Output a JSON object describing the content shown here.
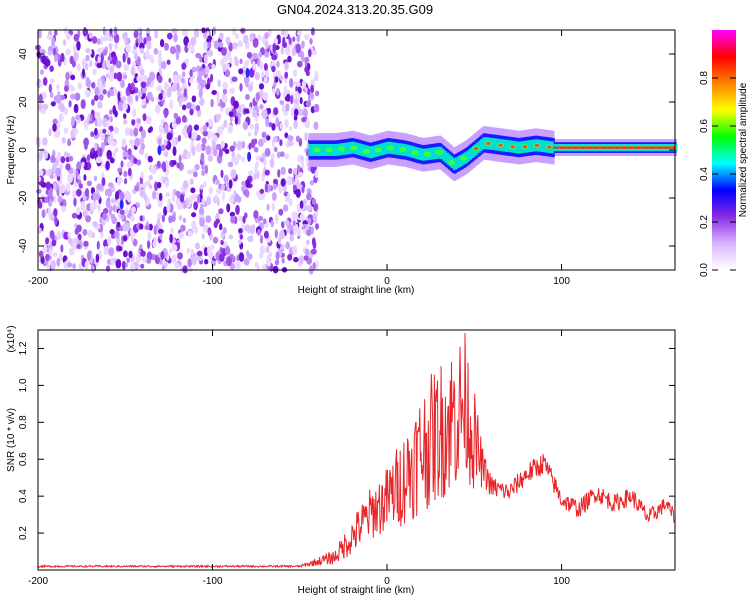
{
  "title": "GN04.2024.313.20.35.G09",
  "chart_data": [
    {
      "type": "heatmap",
      "xlabel": "Height of straight line (km)",
      "ylabel": "Frequency (Hz)",
      "xlim": [
        -200,
        165
      ],
      "ylim": [
        -50,
        50
      ],
      "xticks": [
        -200,
        -100,
        0,
        100
      ],
      "yticks": [
        -40,
        -20,
        0,
        20,
        40
      ],
      "noise_region": {
        "x_range": [
          -200,
          -40
        ],
        "y_range": [
          -50,
          50
        ],
        "color": "#8a2be2"
      },
      "signal_track": [
        {
          "x": -45,
          "y": 0
        },
        {
          "x": -30,
          "y": 0
        },
        {
          "x": -20,
          "y": 1
        },
        {
          "x": -10,
          "y": -1
        },
        {
          "x": 0,
          "y": 1
        },
        {
          "x": 10,
          "y": 0
        },
        {
          "x": 20,
          "y": -2
        },
        {
          "x": 30,
          "y": -1
        },
        {
          "x": 38,
          "y": -6
        },
        {
          "x": 45,
          "y": -3
        },
        {
          "x": 55,
          "y": 3
        },
        {
          "x": 65,
          "y": 2
        },
        {
          "x": 75,
          "y": 1
        },
        {
          "x": 85,
          "y": 2
        },
        {
          "x": 95,
          "y": 1
        },
        {
          "x": 165,
          "y": 1
        }
      ],
      "colorbar": {
        "label": "Normalized spectral amplitude",
        "range": [
          0.0,
          1.0
        ],
        "ticks": [
          "0.0",
          "0.2",
          "0.4",
          "0.6",
          "0.8"
        ],
        "colors": [
          "#ffffff",
          "#d9b3ff",
          "#8a2be2",
          "#0000ff",
          "#00ffff",
          "#00ff00",
          "#ffff00",
          "#ff8000",
          "#ff0000",
          "#ff00ff"
        ]
      }
    },
    {
      "type": "line",
      "xlabel": "Height of straight line (km)",
      "ylabel": "SNR (10 * v/v)",
      "ylabel_scale": "(x10⁴)",
      "xlim": [
        -200,
        165
      ],
      "ylim": [
        0,
        1.3
      ],
      "xticks": [
        -200,
        -100,
        0,
        100
      ],
      "yticks": [
        "0.2",
        "0.4",
        "0.6",
        "0.8",
        "1.0",
        "1.2"
      ],
      "series": [
        {
          "color": "#e8262a",
          "x": [
            -200,
            -150,
            -100,
            -50,
            -30,
            -20,
            -10,
            0,
            10,
            20,
            30,
            40,
            45,
            50,
            55,
            60,
            70,
            80,
            90,
            100,
            110,
            120,
            130,
            140,
            150,
            160,
            165
          ],
          "y": [
            0.02,
            0.02,
            0.02,
            0.02,
            0.07,
            0.18,
            0.3,
            0.38,
            0.5,
            0.65,
            0.75,
            0.85,
            0.9,
            0.7,
            0.55,
            0.45,
            0.42,
            0.52,
            0.58,
            0.38,
            0.33,
            0.42,
            0.36,
            0.4,
            0.28,
            0.36,
            0.28
          ],
          "amplitude": [
            0.005,
            0.005,
            0.005,
            0.005,
            0.04,
            0.1,
            0.14,
            0.18,
            0.26,
            0.34,
            0.38,
            0.42,
            0.4,
            0.28,
            0.1,
            0.06,
            0.05,
            0.06,
            0.06,
            0.05,
            0.05,
            0.05,
            0.05,
            0.05,
            0.05,
            0.04,
            0.04
          ]
        }
      ]
    }
  ]
}
